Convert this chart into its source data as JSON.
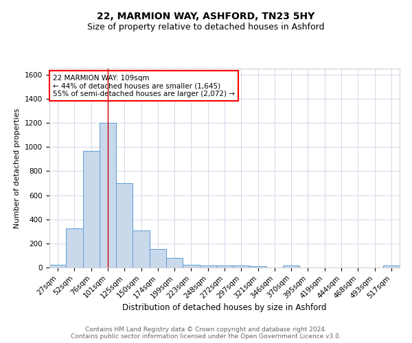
{
  "title1": "22, MARMION WAY, ASHFORD, TN23 5HY",
  "title2": "Size of property relative to detached houses in Ashford",
  "xlabel": "Distribution of detached houses by size in Ashford",
  "ylabel": "Number of detached properties",
  "categories": [
    "27sqm",
    "52sqm",
    "76sqm",
    "101sqm",
    "125sqm",
    "150sqm",
    "174sqm",
    "199sqm",
    "223sqm",
    "248sqm",
    "272sqm",
    "297sqm",
    "321sqm",
    "346sqm",
    "370sqm",
    "395sqm",
    "419sqm",
    "444sqm",
    "468sqm",
    "493sqm",
    "517sqm"
  ],
  "values": [
    25,
    325,
    965,
    1200,
    700,
    305,
    155,
    80,
    25,
    15,
    15,
    15,
    10,
    0,
    15,
    0,
    0,
    0,
    0,
    0,
    15
  ],
  "bar_color": "#c9d9ec",
  "bar_edge_color": "#5b9bd5",
  "grid_color": "#d0d8e8",
  "red_line_x": 3.0,
  "annotation_text": "22 MARMION WAY: 109sqm\n← 44% of detached houses are smaller (1,645)\n55% of semi-detached houses are larger (2,072) →",
  "annotation_box_color": "white",
  "annotation_box_edge": "red",
  "footnote": "Contains HM Land Registry data © Crown copyright and database right 2024.\nContains public sector information licensed under the Open Government Licence v3.0.",
  "ylim": [
    0,
    1650
  ],
  "yticks": [
    0,
    200,
    400,
    600,
    800,
    1000,
    1200,
    1400,
    1600
  ],
  "title1_fontsize": 10,
  "title2_fontsize": 9,
  "xlabel_fontsize": 8.5,
  "ylabel_fontsize": 8,
  "annotation_fontsize": 7.5,
  "footnote_fontsize": 6.5,
  "tick_fontsize": 7.5
}
